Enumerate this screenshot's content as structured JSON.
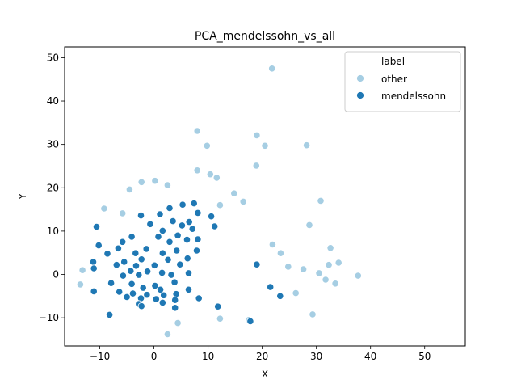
{
  "chart_data": {
    "type": "scatter",
    "title": "PCA_mendelssohn_vs_all",
    "xlabel": "X",
    "ylabel": "Y",
    "xlim": [
      -16.5,
      57.5
    ],
    "ylim": [
      -16.5,
      52.5
    ],
    "xticks": [
      -10,
      0,
      10,
      20,
      30,
      40,
      50
    ],
    "yticks": [
      -10,
      0,
      10,
      20,
      30,
      40,
      50
    ],
    "grid": false,
    "legend": {
      "title": "label",
      "placement": "top-right"
    },
    "series": [
      {
        "name": "other",
        "color": "#a6cee3",
        "points": [
          [
            21.8,
            47.5
          ],
          [
            8.0,
            33.1
          ],
          [
            19.0,
            32.1
          ],
          [
            20.5,
            29.7
          ],
          [
            28.2,
            29.8
          ],
          [
            9.8,
            29.7
          ],
          [
            18.9,
            25.1
          ],
          [
            8.0,
            24.0
          ],
          [
            10.4,
            23.1
          ],
          [
            11.6,
            22.3
          ],
          [
            30.8,
            17.0
          ],
          [
            28.7,
            11.4
          ],
          [
            32.6,
            6.1
          ],
          [
            32.3,
            2.2
          ],
          [
            34.1,
            2.7
          ],
          [
            37.7,
            -0.3
          ],
          [
            29.3,
            -9.2
          ],
          [
            21.9,
            6.9
          ],
          [
            23.4,
            4.9
          ],
          [
            24.8,
            1.8
          ],
          [
            -13.2,
            1.0
          ],
          [
            -13.6,
            -2.3
          ],
          [
            -2.3,
            21.3
          ],
          [
            0.2,
            21.6
          ],
          [
            2.5,
            20.6
          ],
          [
            -4.5,
            19.6
          ],
          [
            2.5,
            -13.8
          ],
          [
            12.2,
            -10.2
          ],
          [
            17.5,
            -10.5
          ],
          [
            4.4,
            -11.2
          ],
          [
            30.5,
            0.3
          ],
          [
            31.7,
            -1.2
          ],
          [
            27.6,
            1.2
          ],
          [
            33.5,
            -2.1
          ],
          [
            26.2,
            -4.3
          ],
          [
            14.8,
            18.7
          ],
          [
            16.5,
            16.8
          ],
          [
            12.2,
            16.0
          ],
          [
            -9.2,
            15.2
          ],
          [
            -5.8,
            14.1
          ]
        ]
      },
      {
        "name": "mendelssohn",
        "color": "#1f78b4",
        "points": [
          [
            5.3,
            16.1
          ],
          [
            7.4,
            16.4
          ],
          [
            2.9,
            15.3
          ],
          [
            1.1,
            13.9
          ],
          [
            -2.4,
            13.6
          ],
          [
            8.1,
            14.2
          ],
          [
            10.6,
            13.4
          ],
          [
            3.5,
            12.3
          ],
          [
            -0.7,
            11.6
          ],
          [
            6.5,
            12.1
          ],
          [
            11.2,
            11.1
          ],
          [
            5.2,
            11.3
          ],
          [
            -10.6,
            11.0
          ],
          [
            1.6,
            10.1
          ],
          [
            7.1,
            10.5
          ],
          [
            4.4,
            9.0
          ],
          [
            -4.1,
            8.7
          ],
          [
            0.8,
            8.7
          ],
          [
            6.1,
            8.0
          ],
          [
            -5.8,
            7.5
          ],
          [
            -10.2,
            6.7
          ],
          [
            2.9,
            7.5
          ],
          [
            8.1,
            8.1
          ],
          [
            -6.6,
            6.0
          ],
          [
            -1.4,
            5.9
          ],
          [
            4.2,
            5.5
          ],
          [
            -3.4,
            4.9
          ],
          [
            1.6,
            4.9
          ],
          [
            7.9,
            5.5
          ],
          [
            -8.6,
            4.8
          ],
          [
            -11.2,
            2.9
          ],
          [
            -5.5,
            2.9
          ],
          [
            -2.3,
            3.5
          ],
          [
            2.6,
            3.4
          ],
          [
            6.2,
            3.7
          ],
          [
            19.0,
            2.3
          ],
          [
            -6.9,
            2.2
          ],
          [
            -3.3,
            2.0
          ],
          [
            0.1,
            2.1
          ],
          [
            4.8,
            2.3
          ],
          [
            -4.3,
            0.8
          ],
          [
            -1.2,
            0.7
          ],
          [
            1.5,
            0.4
          ],
          [
            -11.1,
            1.4
          ],
          [
            -5.7,
            -0.3
          ],
          [
            -2.8,
            -0.1
          ],
          [
            3.2,
            -0.1
          ],
          [
            6.4,
            0.3
          ],
          [
            -7.9,
            -2.0
          ],
          [
            -4.1,
            -2.2
          ],
          [
            0.2,
            -2.6
          ],
          [
            3.8,
            -1.8
          ],
          [
            -2.0,
            -3.1
          ],
          [
            1.2,
            -3.5
          ],
          [
            6.4,
            -3.5
          ],
          [
            21.5,
            -2.9
          ],
          [
            -6.4,
            -4.0
          ],
          [
            -3.9,
            -4.4
          ],
          [
            -1.3,
            -4.7
          ],
          [
            1.8,
            -4.8
          ],
          [
            4.1,
            -4.5
          ],
          [
            -11.1,
            -3.9
          ],
          [
            -5.0,
            -5.2
          ],
          [
            -2.4,
            -5.5
          ],
          [
            0.4,
            -5.7
          ],
          [
            3.9,
            -5.9
          ],
          [
            23.3,
            -5.0
          ],
          [
            -2.8,
            -6.8
          ],
          [
            1.6,
            -6.5
          ],
          [
            8.3,
            -5.5
          ],
          [
            11.8,
            -7.4
          ],
          [
            -2.3,
            -7.3
          ],
          [
            3.9,
            -7.7
          ],
          [
            -8.2,
            -9.3
          ],
          [
            17.8,
            -10.8
          ]
        ]
      }
    ]
  }
}
